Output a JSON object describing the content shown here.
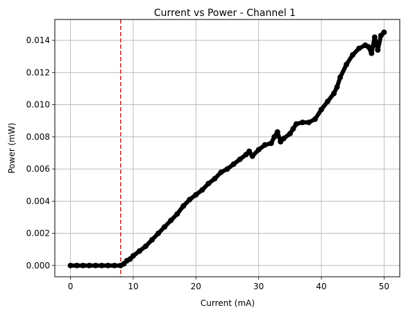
{
  "chart_data": {
    "type": "scatter",
    "title": "Current vs Power - Channel 1",
    "xlabel": "Current (mA)",
    "ylabel": "Power (mW)",
    "xlim": [
      -2.5,
      52.5
    ],
    "ylim": [
      -0.0007,
      0.0153
    ],
    "grid": true,
    "x_ticks": [
      0,
      10,
      20,
      30,
      40,
      50
    ],
    "x_tick_labels": [
      "0",
      "10",
      "20",
      "30",
      "40",
      "50"
    ],
    "y_ticks": [
      0.0,
      0.002,
      0.004,
      0.006,
      0.008,
      0.01,
      0.012,
      0.014
    ],
    "y_tick_labels": [
      "0.000",
      "0.002",
      "0.004",
      "0.006",
      "0.008",
      "0.010",
      "0.012",
      "0.014"
    ],
    "threshold_line": {
      "x": 8.0,
      "color": "#d62728",
      "style": "dashed"
    },
    "series": [
      {
        "color": "#000000",
        "marker": "circle",
        "x": [
          0,
          1,
          2,
          3,
          4,
          5,
          6,
          7,
          8,
          8.5,
          9,
          9.5,
          10,
          11,
          12,
          13,
          14,
          15,
          16,
          17,
          18,
          19,
          20,
          21,
          22,
          23,
          24,
          25,
          26,
          27,
          28,
          28.5,
          29,
          30,
          31,
          32,
          32.5,
          33,
          33.5,
          34,
          35,
          35.5,
          36,
          37,
          38,
          39,
          40,
          41,
          42,
          42.5,
          43,
          44,
          45,
          46,
          47,
          47.5,
          48,
          48.5,
          49,
          49.5,
          50
        ],
        "y": [
          0.0,
          0.0,
          0.0,
          0.0,
          0.0,
          0.0,
          0.0,
          0.0,
          0.0,
          0.0001,
          0.0003,
          0.0004,
          0.0006,
          0.0009,
          0.0012,
          0.0016,
          0.002,
          0.0024,
          0.0028,
          0.0032,
          0.0037,
          0.0041,
          0.0044,
          0.0047,
          0.0051,
          0.0054,
          0.0058,
          0.006,
          0.0063,
          0.0066,
          0.0069,
          0.0071,
          0.0068,
          0.0072,
          0.0075,
          0.0076,
          0.008,
          0.0083,
          0.0077,
          0.0079,
          0.0082,
          0.0085,
          0.0088,
          0.0089,
          0.0089,
          0.0091,
          0.0097,
          0.0102,
          0.0107,
          0.0111,
          0.0117,
          0.0125,
          0.0131,
          0.0135,
          0.0137,
          0.0136,
          0.0132,
          0.0142,
          0.0134,
          0.0143,
          0.0145
        ]
      }
    ]
  }
}
